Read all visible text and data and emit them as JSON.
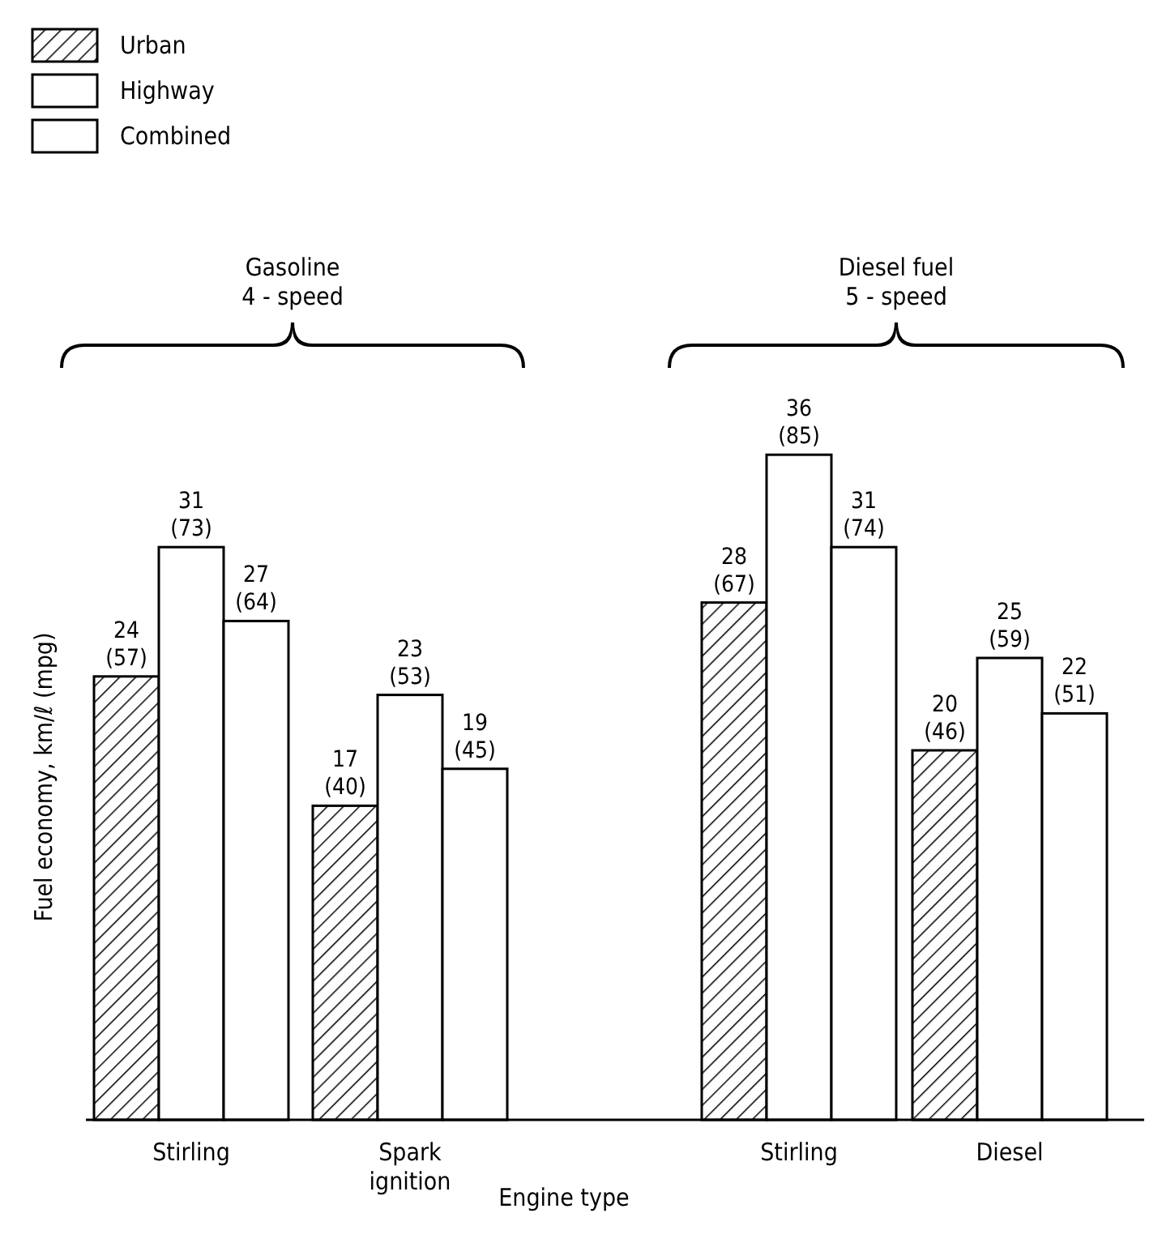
{
  "chart_data": {
    "type": "bar",
    "xlabel": "Engine type",
    "ylabel": "Fuel economy, km/ℓ (mpg)",
    "categories": [
      "Stirling",
      "Spark\nignition",
      "Stirling",
      "Diesel"
    ],
    "series": [
      {
        "name": "Urban",
        "color": "#000000",
        "values": [
          24,
          17,
          28,
          20
        ],
        "value_labels": [
          "24\n(57)",
          "17\n(40)",
          "28\n(67)",
          "20\n(46)"
        ]
      },
      {
        "name": "Highway",
        "color": "#ffffff",
        "values": [
          31,
          23,
          36,
          25
        ],
        "value_labels": [
          "31\n(73)",
          "23\n(53)",
          "36\n(85)",
          "25\n(59)"
        ]
      },
      {
        "name": "Combined",
        "color": "#ffffff",
        "values": [
          27,
          19,
          31,
          22
        ],
        "value_labels": [
          "27\n(64)",
          "19\n(45)",
          "31\n(74)",
          "22\n(51)"
        ]
      }
    ],
    "legend": "top left",
    "annotations": [
      "Gasoline\n4 - speed",
      "Diesel fuel\n5 - speed"
    ]
  }
}
